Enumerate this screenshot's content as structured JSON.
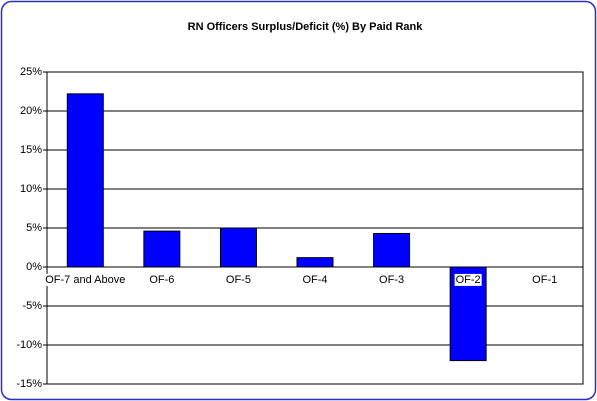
{
  "chart_data": {
    "type": "bar",
    "title": "RN Officers Surplus/Deficit (%) By Paid Rank",
    "categories": [
      "OF-7 and Above",
      "OF-6",
      "OF-5",
      "OF-4",
      "OF-3",
      "OF-2",
      "OF-1"
    ],
    "values": [
      22.2,
      4.6,
      5.0,
      1.2,
      4.3,
      -12.0,
      0
    ],
    "color": "#0000ff",
    "ylim": [
      -15,
      25
    ],
    "yticks": [
      {
        "value": -15,
        "label": "-15%"
      },
      {
        "value": -10,
        "label": "-10%"
      },
      {
        "value": -5,
        "label": "-5%"
      },
      {
        "value": 0,
        "label": "0%"
      },
      {
        "value": 5,
        "label": "5%"
      },
      {
        "value": 10,
        "label": "10%"
      },
      {
        "value": 15,
        "label": "15%"
      },
      {
        "value": 20,
        "label": "20%"
      },
      {
        "value": 25,
        "label": "25%"
      }
    ],
    "grid": true
  }
}
